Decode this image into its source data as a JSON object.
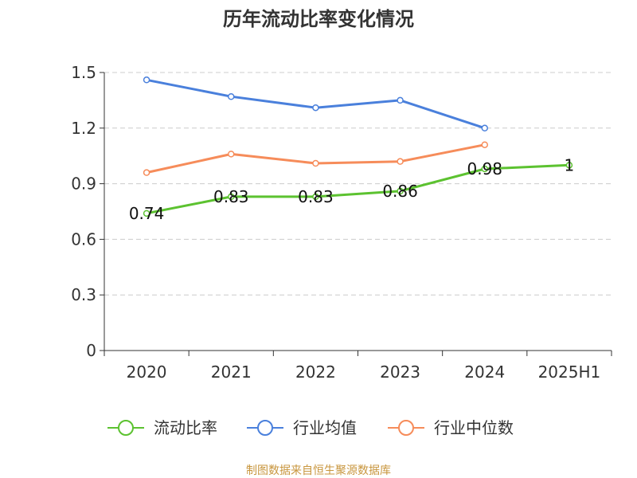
{
  "chart_data": {
    "type": "line",
    "title": "历年流动比率变化情况",
    "categories": [
      "2020",
      "2021",
      "2022",
      "2023",
      "2024",
      "2025H1"
    ],
    "ylim": [
      0,
      1.5
    ],
    "yticks": [
      "0",
      "0.3",
      "0.6",
      "0.9",
      "1.2",
      "1.5"
    ],
    "grid": true,
    "legend_position": "bottom",
    "series": [
      {
        "name": "流动比率",
        "color": "#5cc230",
        "values": [
          0.74,
          0.83,
          0.83,
          0.86,
          0.98,
          1.0
        ],
        "labels": [
          "0.74",
          "0.83",
          "0.83",
          "0.86",
          "0.98",
          "1"
        ]
      },
      {
        "name": "行业均值",
        "color": "#4a80dc",
        "values": [
          1.46,
          1.37,
          1.31,
          1.35,
          1.2,
          null
        ]
      },
      {
        "name": "行业中位数",
        "color": "#f68c5a",
        "values": [
          0.96,
          1.06,
          1.01,
          1.02,
          1.11,
          null
        ]
      }
    ]
  },
  "source": "制图数据来自恒生聚源数据库"
}
